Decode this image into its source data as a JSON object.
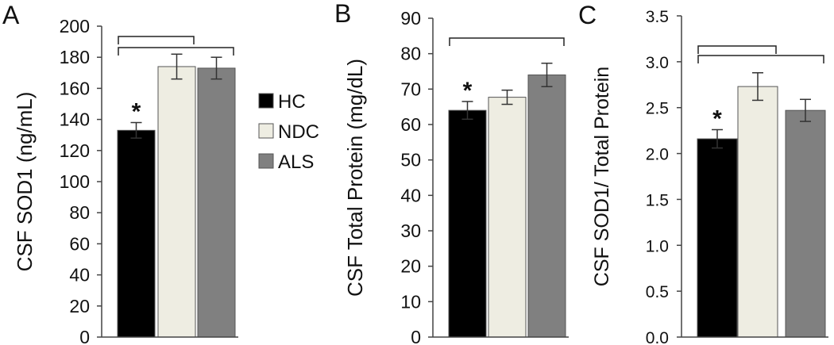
{
  "colors": {
    "HC": "#000000",
    "NDC": "#eeede2",
    "ALS": "#808080",
    "axis": "#444444",
    "text": "#111111"
  },
  "legend": {
    "placement": "between panels A and B",
    "items": [
      {
        "name": "HC",
        "color": "#000000"
      },
      {
        "name": "NDC",
        "color": "#eeede2"
      },
      {
        "name": "ALS",
        "color": "#808080"
      }
    ]
  },
  "chart_data": [
    {
      "panel_label": "A",
      "type": "bar",
      "categories": [
        "HC",
        "NDC",
        "ALS"
      ],
      "values": [
        133,
        174,
        173
      ],
      "errors": [
        5,
        8,
        7
      ],
      "ylabel": "CSF SOD1 (ng/mL)",
      "ylim": [
        0,
        200
      ],
      "yticks": [
        "0",
        "20",
        "40",
        "60",
        "80",
        "100",
        "120",
        "140",
        "160",
        "180",
        "200"
      ],
      "grid": false,
      "significance": [
        {
          "category": "HC",
          "text": "*"
        }
      ],
      "brackets": [
        {
          "from": "HC",
          "to": "NDC"
        },
        {
          "from": "HC",
          "to": "ALS"
        }
      ]
    },
    {
      "panel_label": "B",
      "type": "bar",
      "categories": [
        "HC",
        "NDC",
        "ALS"
      ],
      "values": [
        64,
        67.7,
        74
      ],
      "errors": [
        2.5,
        2,
        3.3
      ],
      "ylabel": "CSF Total Protein (mg/dL)",
      "ylim": [
        0,
        90
      ],
      "yticks": [
        "0",
        "10",
        "20",
        "30",
        "40",
        "50",
        "60",
        "70",
        "80",
        "90"
      ],
      "grid": false,
      "significance": [
        {
          "category": "HC",
          "text": "*"
        }
      ],
      "brackets": [
        {
          "from": "HC",
          "to": "ALS"
        }
      ]
    },
    {
      "panel_label": "C",
      "type": "bar",
      "categories": [
        "HC",
        "NDC",
        "ALS"
      ],
      "values": [
        2.16,
        2.73,
        2.47
      ],
      "errors": [
        0.1,
        0.15,
        0.12
      ],
      "ylabel": "CSF SOD1/ Total Protein",
      "ylim": [
        0,
        3.5
      ],
      "yticks": [
        "0.0",
        "0.5",
        "1.0",
        "1.5",
        "2.0",
        "2.5",
        "3.0",
        "3.5"
      ],
      "grid": false,
      "significance": [
        {
          "category": "HC",
          "text": "*"
        }
      ],
      "brackets": [
        {
          "from": "HC",
          "to": "NDC"
        },
        {
          "from": "HC",
          "to": "ALS"
        }
      ]
    }
  ]
}
